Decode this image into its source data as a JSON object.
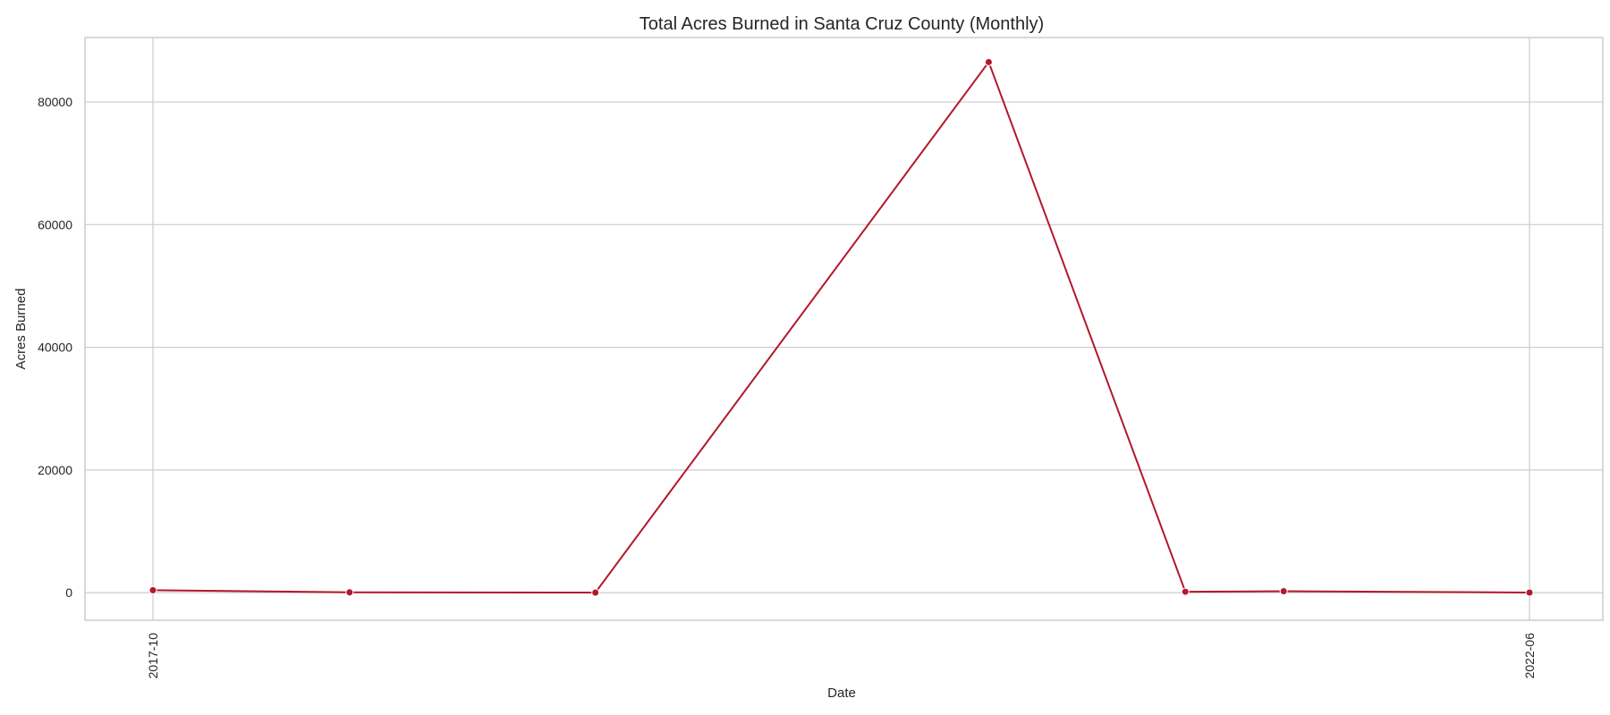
{
  "chart_data": {
    "type": "line",
    "title": "Total Acres Burned in Santa Cruz County (Monthly)",
    "xlabel": "Date",
    "ylabel": "Acres Burned",
    "x_tick_labels": [
      "2017-10",
      "2022-06"
    ],
    "y_ticks": [
      0,
      20000,
      40000,
      60000,
      80000
    ],
    "y_tick_labels": [
      "0",
      "20000",
      "40000",
      "60000",
      "80000"
    ],
    "ylim": [
      -4500,
      90500
    ],
    "grid": true,
    "line_color": "#b2182b",
    "series": [
      {
        "points": [
          {
            "date": "2017-10",
            "value": 400
          },
          {
            "date": "2018-06",
            "value": 50
          },
          {
            "date": "2019-04",
            "value": 20
          },
          {
            "date": "2020-08",
            "value": 86500
          },
          {
            "date": "2021-04",
            "value": 150
          },
          {
            "date": "2021-08",
            "value": 230
          },
          {
            "date": "2022-06",
            "value": 20
          }
        ]
      }
    ]
  }
}
